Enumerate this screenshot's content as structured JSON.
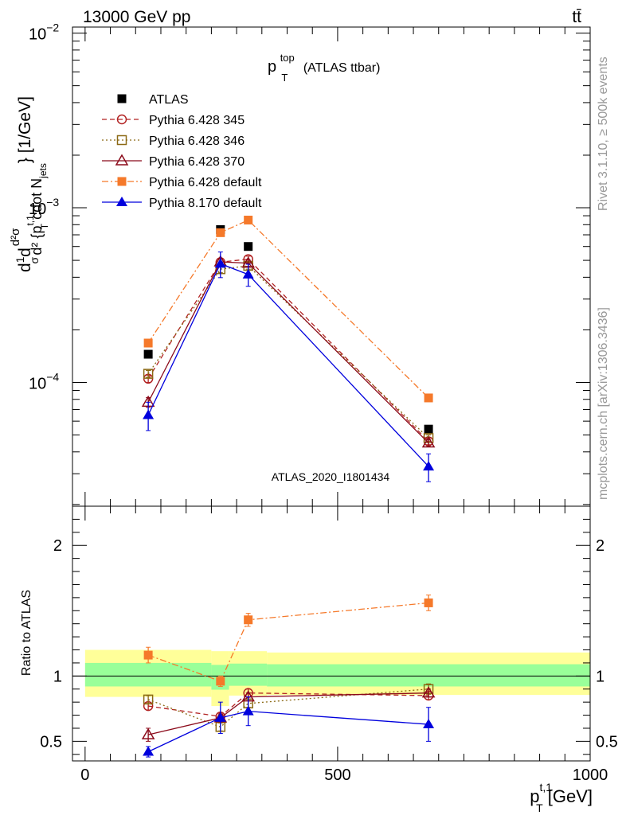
{
  "header": {
    "energy_label": "13000 GeV pp",
    "process_label": "tt̄"
  },
  "side_labels": {
    "rivet": "Rivet 3.1.10, ≥ 500k events",
    "mcplots": "mcplots.cern.ch [arXiv:1306.3436]"
  },
  "chart_data": [
    {
      "type": "line",
      "panel": "main",
      "title_main": "p",
      "title_sup": "top",
      "title_sub": "T",
      "title_rest": "(ATLAS ttbar)",
      "watermark": "ATLAS_2020_I1801434",
      "ylabel": "d²σ/d²{p_T^{t,1} cdot N_jets} [1/GeV]",
      "ylabel_parts": {
        "d1": "d",
        "f1": "1",
        "s1": "σ",
        "d2": "d",
        "num": "d²σ",
        "den": "d² {p",
        "sup": "t,1",
        "sub": "T",
        "rest": " cdot N",
        "jets": "jets",
        "close": "} [1/GeV]"
      },
      "yscale": "log",
      "ylim": [
        1.955e-05,
        0.01083
      ],
      "xlim": [
        -25,
        1000
      ],
      "yticks": [
        {
          "value": 0.0001,
          "base": "10",
          "exp": "−4"
        },
        {
          "value": 0.001,
          "base": "10",
          "exp": "−3"
        },
        {
          "value": 0.01,
          "base": "10",
          "exp": "−2"
        }
      ],
      "series": [
        {
          "name": "ATLAS",
          "color": "#000000",
          "marker": "square-filled",
          "line": "none",
          "x": [
            125,
            268,
            323,
            680
          ],
          "y": [
            0.000145,
            0.00075,
            0.0006,
            5.4e-05
          ],
          "err": [
            2e-06,
            1e-05,
            8e-06,
            1e-06
          ]
        },
        {
          "name": "Pythia 6.428 345",
          "color": "#b22222",
          "marker": "circle-open",
          "line": "dashed",
          "x": [
            125,
            268,
            323,
            680
          ],
          "y": [
            0.000105,
            0.000488,
            0.000508,
            4.6e-05
          ],
          "err": [
            5e-06,
            2e-05,
            2e-05,
            2e-06
          ]
        },
        {
          "name": "Pythia 6.428 346",
          "color": "#8b6914",
          "marker": "square-open",
          "line": "dotted",
          "x": [
            125,
            268,
            323,
            680
          ],
          "y": [
            0.000112,
            0.000445,
            0.000465,
            4.8e-05
          ],
          "err": [
            5e-06,
            2e-05,
            2e-05,
            2e-06
          ]
        },
        {
          "name": "Pythia 6.428 370",
          "color": "#8b0a1a",
          "marker": "triangle-open",
          "line": "solid",
          "x": [
            125,
            268,
            323,
            680
          ],
          "y": [
            7.7e-05,
            0.00049,
            0.000482,
            4.5e-05
          ],
          "err": [
            5e-06,
            2e-05,
            2e-05,
            2e-06
          ]
        },
        {
          "name": "Pythia 6.428 default",
          "color": "#f5792a",
          "marker": "square-filled",
          "line": "dashdot",
          "x": [
            125,
            268,
            323,
            680
          ],
          "y": [
            0.000168,
            0.00072,
            0.00085,
            8.15e-05
          ],
          "err": [
            8e-06,
            3e-05,
            3e-05,
            3e-06
          ]
        },
        {
          "name": "Pythia 8.170 default",
          "color": "#0000dd",
          "marker": "triangle-filled",
          "line": "solid",
          "x": [
            125,
            268,
            323,
            680
          ],
          "y": [
            6.5e-05,
            0.000478,
            0.000415,
            3.3e-05
          ],
          "err": [
            1.2e-05,
            8e-05,
            6e-05,
            6e-06
          ]
        }
      ]
    },
    {
      "type": "line",
      "panel": "ratio",
      "ylabel": "Ratio to ATLAS",
      "ylim": [
        0.35,
        2.3
      ],
      "xlim": [
        -25,
        1000
      ],
      "yticks": [
        0.5,
        1,
        2
      ],
      "ytick_labels": [
        "0.5",
        "1",
        "2"
      ],
      "xticks": [
        0,
        500,
        1000
      ],
      "xtick_labels": [
        "0",
        "500",
        "1000"
      ],
      "xlabel_parts": {
        "p": "p",
        "sup": "t,1",
        "sub": "T",
        "rest": " [GeV]"
      },
      "bands": {
        "bins": [
          {
            "x0": 0,
            "x1": 250,
            "yellow": [
              0.84,
              1.2
            ],
            "green": [
              0.92,
              1.1
            ]
          },
          {
            "x0": 250,
            "x1": 285,
            "yellow": [
              0.77,
              1.19
            ],
            "green": [
              0.895,
              1.085
            ]
          },
          {
            "x0": 285,
            "x1": 360,
            "yellow": [
              0.85,
              1.19
            ],
            "green": [
              0.925,
              1.095
            ]
          },
          {
            "x0": 360,
            "x1": 1000,
            "yellow": [
              0.855,
              1.18
            ],
            "green": [
              0.92,
              1.09
            ]
          }
        ],
        "yellow_color": "#ffff99",
        "green_color": "#99ff99"
      },
      "series": [
        {
          "name": "Pythia 6.428 345",
          "x": [
            125,
            268,
            323,
            680
          ],
          "y": [
            0.77,
            0.69,
            0.87,
            0.85
          ],
          "err": [
            0.03,
            0.03,
            0.03,
            0.03
          ]
        },
        {
          "name": "Pythia 6.428 346",
          "x": [
            125,
            268,
            323,
            680
          ],
          "y": [
            0.82,
            0.61,
            0.79,
            0.9
          ],
          "err": [
            0.03,
            0.03,
            0.03,
            0.04
          ]
        },
        {
          "name": "Pythia 6.428 370",
          "x": [
            125,
            268,
            323,
            680
          ],
          "y": [
            0.55,
            0.68,
            0.84,
            0.87
          ],
          "err": [
            0.05,
            0.03,
            0.03,
            0.03
          ]
        },
        {
          "name": "Pythia 6.428 default",
          "x": [
            125,
            268,
            323,
            680
          ],
          "y": [
            1.16,
            0.96,
            1.43,
            1.56
          ],
          "err": [
            0.06,
            0.04,
            0.05,
            0.06
          ]
        },
        {
          "name": "Pythia 8.170 default",
          "x": [
            125,
            268,
            323,
            680
          ],
          "y": [
            0.42,
            0.68,
            0.73,
            0.63
          ],
          "err": [
            0.04,
            0.12,
            0.11,
            0.13
          ]
        }
      ]
    }
  ]
}
